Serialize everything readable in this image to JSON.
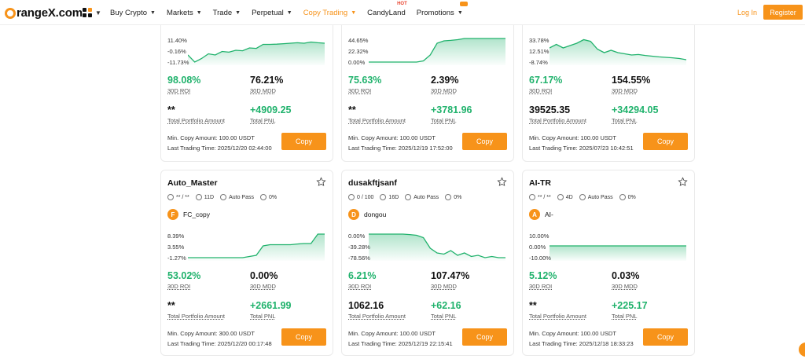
{
  "header": {
    "logo": "rangeX.com",
    "nav": [
      {
        "label": "Buy Crypto",
        "caret": true
      },
      {
        "label": "Markets",
        "caret": true
      },
      {
        "label": "Trade",
        "caret": true
      },
      {
        "label": "Perpetual",
        "caret": true
      },
      {
        "label": "Copy Trading",
        "caret": true,
        "active": true
      },
      {
        "label": "CandyLand",
        "badge": "HOT"
      },
      {
        "label": "Promotions",
        "caret": true
      }
    ],
    "login": "Log In",
    "register": "Register"
  },
  "colors": {
    "accent": "#f7931a",
    "positive": "#20b26c"
  },
  "labels": {
    "roi": "30D ROI",
    "mdd": "30D MDD",
    "portfolio": "Total Portfolio Amount",
    "pnl": "Total PNL",
    "min_copy": "Min. Copy Amount:",
    "last_trade": "Last Trading Time:",
    "copy": "Copy",
    "auto_pass": "Auto Pass"
  },
  "traders": [
    {
      "yticks": [
        "11.40%",
        "-0.16%",
        "-11.73%"
      ],
      "roi": "98.08%",
      "mdd": "76.21%",
      "portfolio": "**",
      "pnl": "+4909.25",
      "min_copy": "100.00 USDT",
      "last_trade": "2025/12/20 02:44:00",
      "series": [
        0.3,
        0.0,
        0.15,
        0.35,
        0.3,
        0.45,
        0.42,
        0.5,
        0.48,
        0.6,
        0.58,
        0.75,
        0.75,
        0.76,
        0.78,
        0.8,
        0.82,
        0.8,
        0.85,
        0.82,
        0.8
      ]
    },
    {
      "yticks": [
        "44.65%",
        "22.32%",
        "0.00%"
      ],
      "roi": "75.63%",
      "mdd": "2.39%",
      "portfolio": "**",
      "pnl": "+3781.96",
      "min_copy": "100.00 USDT",
      "last_trade": "2025/12/19 17:52:00",
      "series": [
        0,
        0,
        0,
        0,
        0,
        0,
        0,
        0,
        0.05,
        0.3,
        0.8,
        0.9,
        0.92,
        0.95,
        1,
        1,
        1,
        1,
        1,
        1,
        1
      ]
    },
    {
      "yticks": [
        "33.78%",
        "12.51%",
        "-8.74%"
      ],
      "roi": "67.17%",
      "mdd": "154.55%",
      "portfolio": "39525.35",
      "pnl": "+34294.05",
      "min_copy": "100.00 USDT",
      "last_trade": "2025/07/23 10:42:51",
      "series": [
        0.6,
        0.75,
        0.6,
        0.7,
        0.8,
        0.95,
        0.88,
        0.55,
        0.4,
        0.5,
        0.4,
        0.35,
        0.3,
        0.32,
        0.28,
        0.25,
        0.22,
        0.2,
        0.18,
        0.15,
        0.1
      ]
    },
    {
      "name": "Auto_Master",
      "followers": "** / **",
      "days": "11D",
      "fee": "0%",
      "leader_initial": "F",
      "leader": "FC_copy",
      "yticks": [
        "8.39%",
        "3.55%",
        "-1.27%"
      ],
      "roi": "53.02%",
      "mdd": "0.00%",
      "portfolio": "**",
      "pnl": "+2661.99",
      "min_copy": "300.00 USDT",
      "last_trade": "2025/12/20 00:17:48",
      "series": [
        0,
        0,
        0,
        0,
        0,
        0,
        0,
        0,
        0,
        0.05,
        0.1,
        0.5,
        0.55,
        0.55,
        0.55,
        0.55,
        0.58,
        0.6,
        0.6,
        1,
        1
      ]
    },
    {
      "name": "dusakftjsanf",
      "followers": "0 / 100",
      "days": "16D",
      "fee": "0%",
      "leader_initial": "D",
      "leader": "dongou",
      "yticks": [
        "0.00%",
        "-39.28%",
        "-78.56%"
      ],
      "roi": "6.21%",
      "mdd": "107.47%",
      "portfolio": "1062.16",
      "pnl": "+62.16",
      "min_copy": "100.00 USDT",
      "last_trade": "2025/12/19 22:15:41",
      "series": [
        1,
        1,
        1,
        1,
        1,
        1,
        0.98,
        0.95,
        0.85,
        0.4,
        0.2,
        0.15,
        0.3,
        0.1,
        0.2,
        0.05,
        0.1,
        0.0,
        0.05,
        0.0,
        0.0
      ]
    },
    {
      "name": "AI-TR",
      "followers": "** / **",
      "days": "4D",
      "fee": "0%",
      "leader_initial": "A",
      "leader": "AI-",
      "yticks": [
        "10.00%",
        "0.00%",
        "-10.00%"
      ],
      "roi": "5.12%",
      "mdd": "0.03%",
      "portfolio": "**",
      "pnl": "+225.17",
      "min_copy": "100.00 USDT",
      "last_trade": "2025/12/18 18:33:23",
      "series": [
        0.5,
        0.5,
        0.5,
        0.5,
        0.5,
        0.5,
        0.5,
        0.5,
        0.5,
        0.5,
        0.5,
        0.5,
        0.5,
        0.5,
        0.5,
        0.5,
        0.5,
        0.5,
        0.5,
        0.5,
        0.5
      ]
    }
  ]
}
